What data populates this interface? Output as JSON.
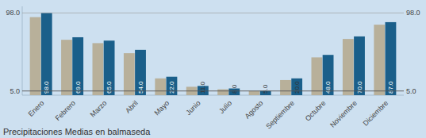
{
  "chart_data": {
    "type": "bar",
    "title": "Precipitaciones Medias en balmaseda",
    "categories": [
      "Enero",
      "Febrero",
      "Marzo",
      "Abril",
      "Mayo",
      "Junio",
      "Julio",
      "Agosto",
      "Septiembre",
      "Octubre",
      "Noviembre",
      "Diciembre"
    ],
    "series": [
      {
        "color": "#b8b09a",
        "values": [
          93.0,
          66.0,
          62.0,
          50.0,
          20.0,
          10.0,
          7.0,
          5.0,
          18.0,
          45.0,
          67.0,
          84.0
        ]
      },
      {
        "color": "#1a5f8a",
        "values": [
          98.0,
          69.0,
          65.0,
          54.0,
          22.0,
          11.0,
          8.0,
          5.0,
          20.0,
          48.0,
          70.0,
          87.0
        ],
        "data_labels": true,
        "value_labels": [
          "98.0",
          "69.0",
          "65.0",
          "54.0",
          "22.0",
          "11.0",
          "8.0",
          "5.0",
          "20.0",
          "48.0",
          "70.0",
          "87.0"
        ]
      }
    ],
    "ylim": [
      0,
      105.84
    ],
    "yticks": [
      {
        "value": 98.0,
        "label": "98.0"
      },
      {
        "value": 5.0,
        "label": "5.0"
      }
    ],
    "grid": true
  }
}
